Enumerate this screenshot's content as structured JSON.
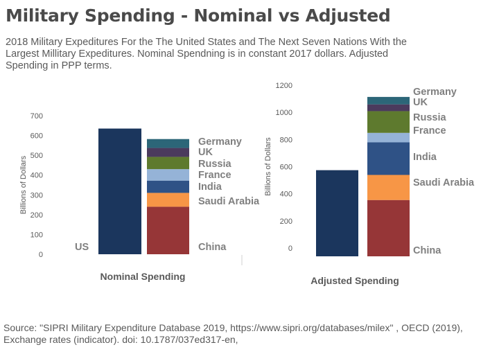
{
  "title": "Military Spending - Nominal vs Adjusted",
  "subtitle": "2018 Military Expeditures For the The United States and The Next Seven Nations With the Largest Millitary Expeditures. Nominal Spendning is in constant 2017 dollars. Adjusted Spending in PPP terms.",
  "source": "Source: \"SIPRI Military Expenditure Database 2019, https://www.sipri.org/databases/milex\" , OECD (2019), Exchange rates (indicator). doi: 10.1787/037ed317-en,",
  "colors": {
    "US": "#1b365d",
    "China": "#963637",
    "Saudi Arabia": "#f79646",
    "India": "#2f5286",
    "France": "#95b3d7",
    "Russia": "#5e7a2e",
    "UK": "#4b3a5d",
    "Germany": "#2c6678"
  },
  "chart_data": [
    {
      "type": "bar",
      "xlabel": "Nominal Spending",
      "ylabel": "Billions of Dollars",
      "ylim": [
        0,
        700
      ],
      "yticks": [
        0,
        100,
        200,
        300,
        400,
        500,
        600,
        700
      ],
      "us": {
        "name": "US",
        "value": 635
      },
      "stack": [
        {
          "name": "China",
          "value": 240
        },
        {
          "name": "Saudi Arabia",
          "value": 70
        },
        {
          "name": "India",
          "value": 62
        },
        {
          "name": "France",
          "value": 58
        },
        {
          "name": "Russia",
          "value": 62
        },
        {
          "name": "UK",
          "value": 45
        },
        {
          "name": "Germany",
          "value": 45
        }
      ]
    },
    {
      "type": "bar",
      "xlabel": "Adjusted Spending",
      "ylabel": "Billions of Dollars",
      "ylim": [
        0,
        1200
      ],
      "yticks": [
        0,
        200,
        400,
        600,
        800,
        1000,
        1200
      ],
      "us": {
        "name": "US",
        "value": 635
      },
      "stack": [
        {
          "name": "China",
          "value": 415
        },
        {
          "name": "Saudi Arabia",
          "value": 185
        },
        {
          "name": "India",
          "value": 240
        },
        {
          "name": "France",
          "value": 70
        },
        {
          "name": "Russia",
          "value": 160
        },
        {
          "name": "UK",
          "value": 50
        },
        {
          "name": "Germany",
          "value": 55
        }
      ]
    }
  ]
}
